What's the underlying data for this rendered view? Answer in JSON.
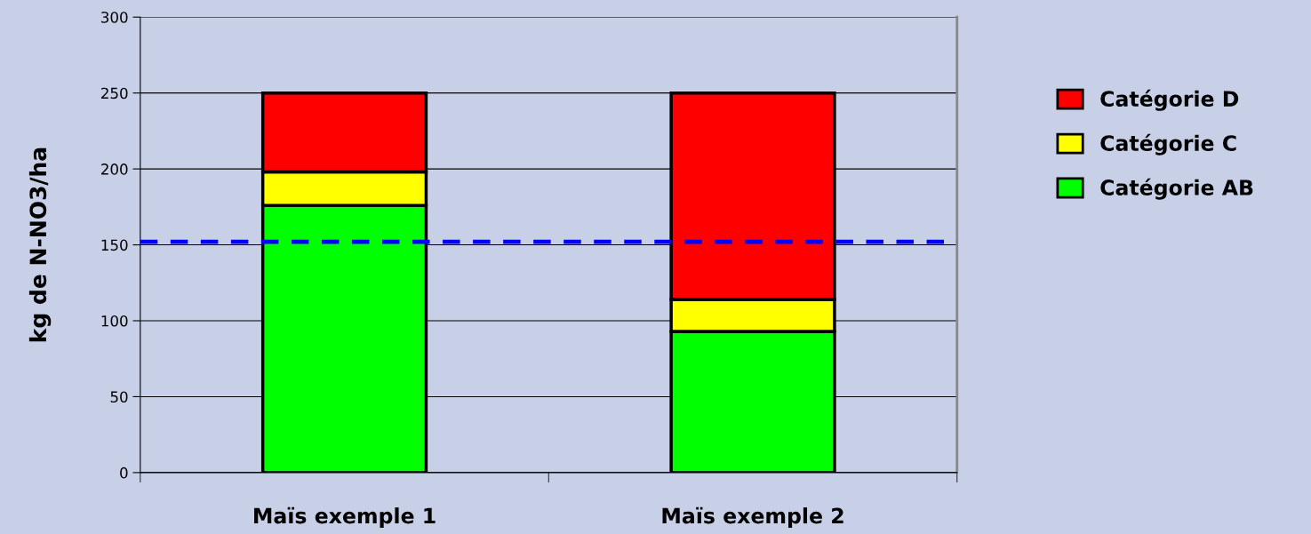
{
  "chart_data": {
    "type": "bar",
    "stacked": true,
    "ylabel": "kg de N-NO3/ha",
    "categories": [
      "Maïs exemple 1",
      "Maïs exemple 2"
    ],
    "series": [
      {
        "name": "Catégorie AB",
        "color": "#00ff00",
        "values": [
          176,
          93
        ]
      },
      {
        "name": "Catégorie C",
        "color": "#ffff00",
        "values": [
          22,
          21
        ]
      },
      {
        "name": "Catégorie D",
        "color": "#ff0000",
        "values": [
          52,
          136
        ]
      }
    ],
    "ylim": [
      0,
      300
    ],
    "yticks": [
      0,
      50,
      100,
      150,
      200,
      250,
      300
    ],
    "grid": "y",
    "legend": "right",
    "ref_lines": [
      {
        "axis": "y",
        "value": 152,
        "color": "#0000ff",
        "line_style": "dashed"
      }
    ]
  }
}
